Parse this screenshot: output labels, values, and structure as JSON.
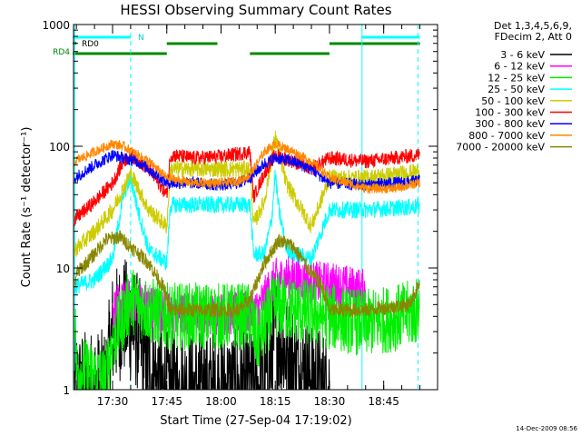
{
  "chart_data": {
    "type": "line",
    "title": "HESSI Observing Summary Count Rates",
    "xlabel": "Start Time (27-Sep-04 17:19:02)",
    "ylabel": "Count Rate (s⁻¹ detector⁻¹)",
    "ylim": [
      1,
      1000
    ],
    "yscale": "log",
    "xlim_minutes": [
      17.32,
      18.998
    ],
    "x_ticks": [
      "17:30",
      "17:45",
      "18:00",
      "18:15",
      "18:30",
      "18:45"
    ],
    "y_ticks": [
      "1",
      "10",
      "100",
      "1000"
    ],
    "grid": false,
    "legend_position": "right",
    "legend_header": [
      "Det 1,3,4,5,6,9,",
      "FDecim 2, Att 0"
    ],
    "timestamp": "14-Dec-2009 08:56",
    "flag_labels": {
      "rd0": "RD0",
      "rd4": "RD4",
      "n": "N"
    },
    "event_lines_solid": [
      "17:19:30",
      "18:39:00"
    ],
    "event_lines_dashed": [
      "17:35:00",
      "18:54:30"
    ],
    "flags": [
      {
        "name": "N",
        "color": "#00ffff",
        "segments": [
          [
            "17:19",
            "17:35"
          ],
          [
            "18:39",
            "18:55"
          ]
        ]
      },
      {
        "name": "RD0",
        "color": "#008800",
        "segments": [
          [
            "17:19",
            "17:20"
          ]
        ]
      },
      {
        "name": "upper",
        "color": "#008800",
        "segments": [
          [
            "17:45",
            "17:59"
          ],
          [
            "18:30",
            "18:55"
          ]
        ]
      },
      {
        "name": "RD4",
        "color": "#008800",
        "segments": [
          [
            "17:19",
            "17:45"
          ],
          [
            "18:08",
            "18:30"
          ]
        ]
      }
    ],
    "series": [
      {
        "name": "3 - 6 keV",
        "color": "#000000",
        "x": [
          "17:19:30",
          "17:28",
          "17:30",
          "17:33",
          "17:37",
          "17:40",
          "17:44",
          "17:46",
          "18:10",
          "18:13",
          "18:15",
          "18:18",
          "18:21",
          "18:25",
          "18:28",
          "18:30"
        ],
        "y": [
          1,
          1,
          3,
          4,
          3,
          1.5,
          1,
          1,
          1,
          1.3,
          3,
          2,
          1.5,
          1.3,
          1,
          1
        ]
      },
      {
        "name": "6 - 12 keV",
        "color": "#ff00ff",
        "x": [
          "17:30",
          "17:34",
          "17:40",
          "17:45",
          "18:05",
          "18:10",
          "18:15",
          "18:20",
          "18:25",
          "18:30",
          "18:35",
          "18:40"
        ],
        "y": [
          4.5,
          5.5,
          5,
          4.2,
          4.2,
          4.5,
          8,
          8.5,
          7.5,
          7.5,
          7,
          6.5
        ]
      },
      {
        "name": "12 - 25 keV",
        "color": "#00ee00",
        "x": [
          "17:19:30",
          "17:20",
          "17:25",
          "17:28",
          "17:30",
          "17:35",
          "17:40",
          "17:45",
          "17:50",
          "18:00",
          "18:08",
          "18:10",
          "18:15",
          "18:20",
          "18:30",
          "18:40",
          "18:50",
          "18:55"
        ],
        "y": [
          5,
          1.5,
          1.3,
          1.2,
          2.5,
          5.5,
          4.5,
          4,
          4,
          4,
          4,
          2.5,
          5,
          4.5,
          4,
          3.5,
          4,
          4.5
        ]
      },
      {
        "name": "25 - 50 keV",
        "color": "#00ffff",
        "x": [
          "17:19:30",
          "17:25",
          "17:30",
          "17:33",
          "17:35",
          "17:37",
          "17:40",
          "17:45",
          "17:46",
          "18:08",
          "18:09",
          "18:12",
          "18:14",
          "18:15",
          "18:16",
          "18:18",
          "18:20",
          "18:25",
          "18:30",
          "18:40",
          "18:55"
        ],
        "y": [
          7,
          8,
          12,
          40,
          55,
          30,
          14,
          11,
          33,
          33,
          13,
          13,
          25,
          60,
          30,
          15,
          13,
          12,
          30,
          30,
          32
        ]
      },
      {
        "name": "50 - 100 keV",
        "color": "#cccc00",
        "x": [
          "17:19:30",
          "17:25",
          "17:30",
          "17:33",
          "17:35",
          "17:40",
          "17:45",
          "17:46",
          "18:08",
          "18:09",
          "18:12",
          "18:15",
          "18:18",
          "18:25",
          "18:30",
          "18:40",
          "18:55"
        ],
        "y": [
          14,
          20,
          30,
          45,
          60,
          30,
          22,
          65,
          65,
          23,
          35,
          120,
          50,
          22,
          55,
          55,
          62
        ]
      },
      {
        "name": "100 - 300 keV",
        "color": "#ff0000",
        "x": [
          "17:19:30",
          "17:25",
          "17:30",
          "17:33",
          "17:35",
          "17:40",
          "17:45",
          "17:46",
          "17:52",
          "18:00",
          "18:08",
          "18:09",
          "18:12",
          "18:15",
          "18:20",
          "18:25",
          "18:30",
          "18:40",
          "18:55"
        ],
        "y": [
          25,
          35,
          50,
          75,
          85,
          65,
          40,
          85,
          80,
          82,
          90,
          38,
          60,
          85,
          75,
          65,
          80,
          75,
          85
        ]
      },
      {
        "name": "300 - 800 keV",
        "color": "#0000ff",
        "x": [
          "17:19:30",
          "17:25",
          "17:30",
          "17:33",
          "17:37",
          "17:40",
          "17:45",
          "17:52",
          "18:00",
          "18:05",
          "18:08",
          "18:12",
          "18:15",
          "18:20",
          "18:25",
          "18:30",
          "18:40",
          "18:55"
        ],
        "y": [
          55,
          70,
          85,
          80,
          75,
          65,
          50,
          50,
          48,
          50,
          55,
          72,
          80,
          75,
          65,
          50,
          48,
          52
        ]
      },
      {
        "name": "800 - 7000 keV",
        "color": "#ff8800",
        "x": [
          "17:19:30",
          "17:25",
          "17:30",
          "17:33",
          "17:37",
          "17:40",
          "17:45",
          "17:52",
          "18:00",
          "18:05",
          "18:08",
          "18:12",
          "18:15",
          "18:20",
          "18:25",
          "18:30",
          "18:40",
          "18:48",
          "18:55"
        ],
        "y": [
          75,
          90,
          105,
          100,
          85,
          75,
          55,
          50,
          50,
          52,
          58,
          90,
          105,
          90,
          75,
          55,
          45,
          45,
          50
        ]
      },
      {
        "name": "7000 - 20000 keV",
        "color": "#888800",
        "x": [
          "17:19:30",
          "17:20",
          "17:25",
          "17:28",
          "17:32",
          "17:35",
          "17:40",
          "17:44",
          "17:46",
          "17:50",
          "18:05",
          "18:08",
          "18:12",
          "18:16",
          "18:20",
          "18:24",
          "18:28",
          "18:30",
          "18:40",
          "18:52",
          "18:55"
        ],
        "y": [
          7,
          9,
          13,
          17,
          18,
          15,
          11,
          7,
          4.5,
          4.5,
          4.5,
          5.5,
          11,
          17,
          15,
          10,
          7,
          4.5,
          4.5,
          5,
          7.5
        ]
      }
    ]
  }
}
